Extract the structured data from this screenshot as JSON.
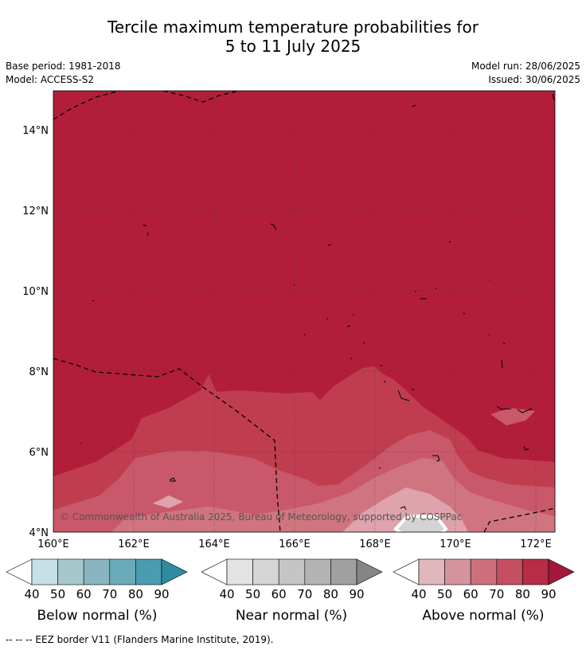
{
  "title": {
    "line1": "Tercile maximum temperature probabilities for",
    "line2": "5 to 11 July 2025"
  },
  "meta": {
    "base_period": "Base period: 1981-2018",
    "model": "Model: ACCESS-S2",
    "model_run": "Model run: 28/06/2025",
    "issued": "Issued: 30/06/2025"
  },
  "map": {
    "lon_range": [
      160,
      172.5
    ],
    "lat_range": [
      4,
      14.9
    ],
    "lon_ticks": [
      "160°E",
      "162°E",
      "164°E",
      "166°E",
      "168°E",
      "170°E",
      "172°E"
    ],
    "lat_ticks": [
      "4°N",
      "6°N",
      "8°N",
      "10°N",
      "12°N",
      "14°N"
    ],
    "dominant_category": "Above normal, 80-90%",
    "copyright": "© Commonwealth of Australia 2025, Bureau of Meteorology, supported by COSPPac"
  },
  "colorbars": [
    {
      "title": "Below normal (%)",
      "ticks": [
        "40",
        "50",
        "60",
        "70",
        "80",
        "90"
      ],
      "colors": [
        "#ffffff",
        "#c7e0e6",
        "#a6c7cc",
        "#88b5c0",
        "#6aabba",
        "#4a9cb0",
        "#2f8c9f"
      ]
    },
    {
      "title": "Near normal (%)",
      "ticks": [
        "40",
        "50",
        "60",
        "70",
        "80",
        "90"
      ],
      "colors": [
        "#ffffff",
        "#e3e3e3",
        "#d5d5d5",
        "#c5c5c5",
        "#b3b3b3",
        "#a0a0a0",
        "#858585"
      ]
    },
    {
      "title": "Above normal (%)",
      "ticks": [
        "40",
        "50",
        "60",
        "70",
        "80",
        "90"
      ],
      "colors": [
        "#ffffff",
        "#e0b7bd",
        "#d4939e",
        "#cd707c",
        "#c44f61",
        "#b82c45",
        "#a5173a"
      ]
    }
  ],
  "footnote": "--  --  -- EEZ border V11 (Flanders Marine Institute, 2019)."
}
